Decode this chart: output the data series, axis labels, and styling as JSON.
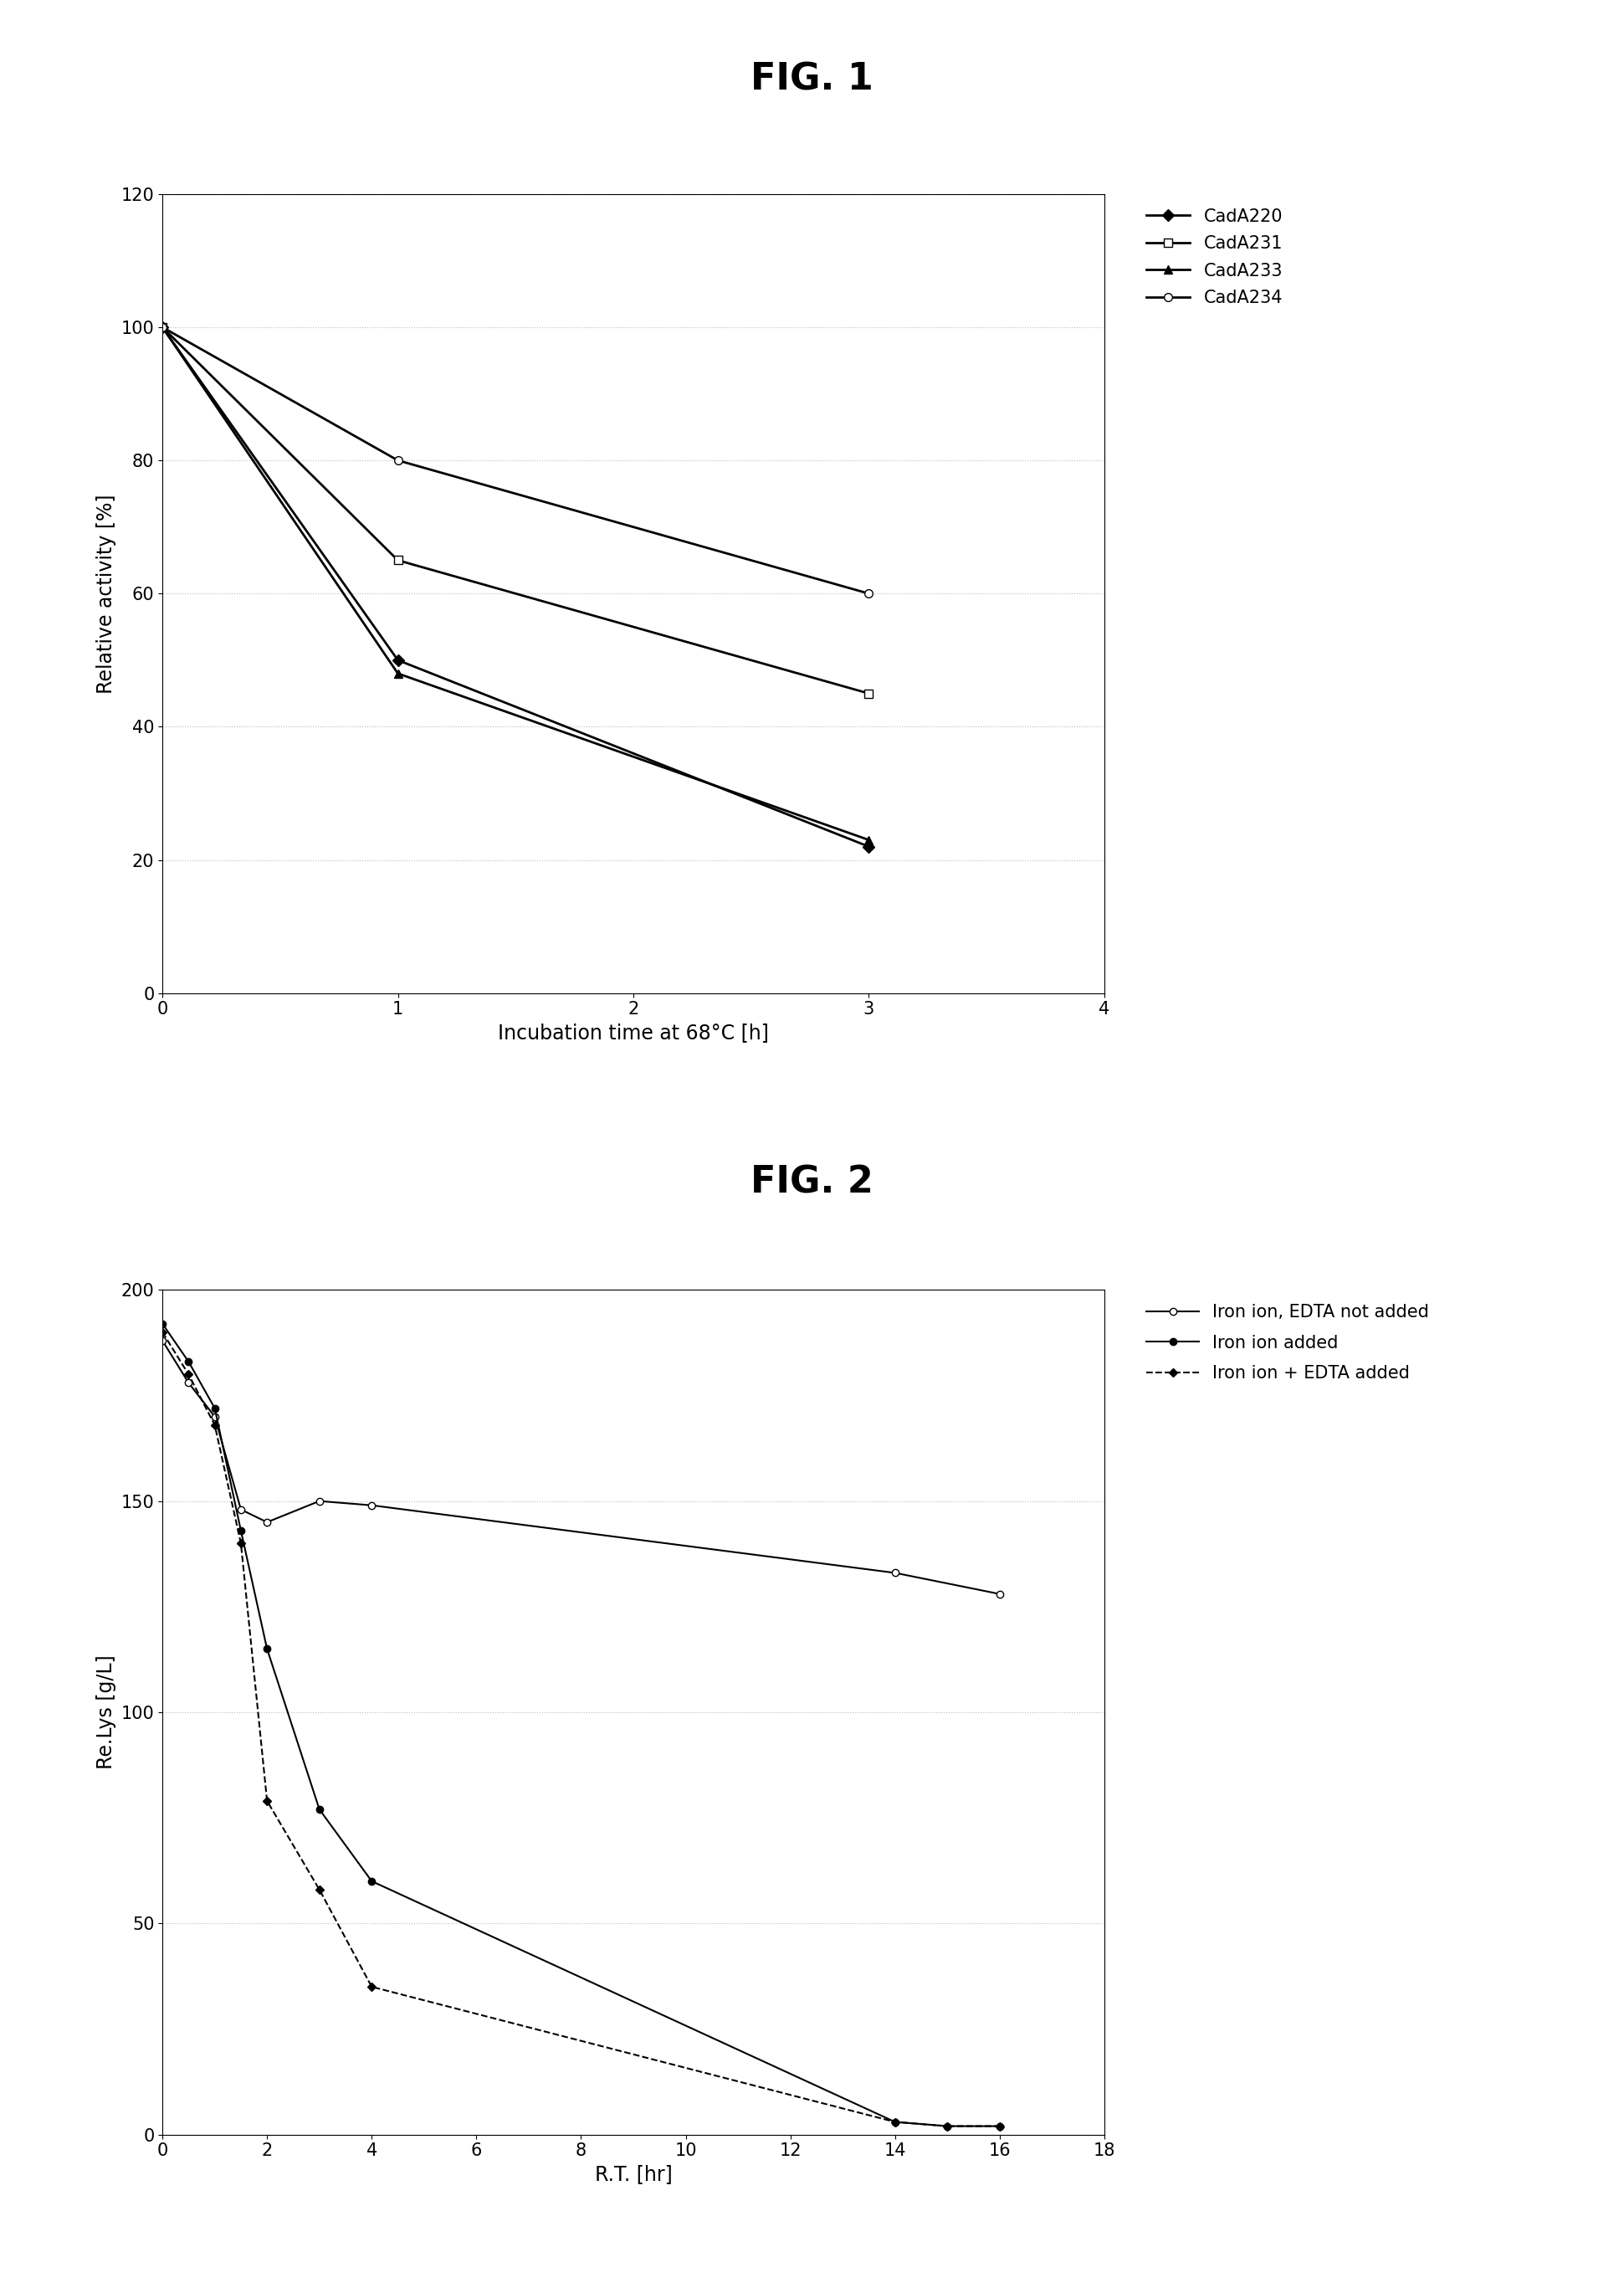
{
  "fig1": {
    "title": "FIG. 1",
    "xlabel": "Incubation time at 68°C [h]",
    "ylabel": "Relative activity [%]",
    "xlim": [
      0,
      4
    ],
    "ylim": [
      0,
      120
    ],
    "xticks": [
      0,
      1,
      2,
      3,
      4
    ],
    "yticks": [
      0,
      20,
      40,
      60,
      80,
      100,
      120
    ],
    "series": [
      {
        "label": "CadA220",
        "x": [
          0,
          1,
          3
        ],
        "y": [
          100,
          50,
          22
        ],
        "color": "#000000",
        "marker": "D",
        "markersize": 7,
        "linestyle": "-",
        "linewidth": 2,
        "markerfacecolor": "#000000"
      },
      {
        "label": "CadA231",
        "x": [
          0,
          1,
          3
        ],
        "y": [
          100,
          65,
          45
        ],
        "color": "#000000",
        "marker": "s",
        "markersize": 7,
        "linestyle": "-",
        "linewidth": 2,
        "markerfacecolor": "#ffffff"
      },
      {
        "label": "CadA233",
        "x": [
          0,
          1,
          3
        ],
        "y": [
          100,
          48,
          23
        ],
        "color": "#000000",
        "marker": "^",
        "markersize": 7,
        "linestyle": "-",
        "linewidth": 2,
        "markerfacecolor": "#000000"
      },
      {
        "label": "CadA234",
        "x": [
          0,
          1,
          3
        ],
        "y": [
          100,
          80,
          60
        ],
        "color": "#000000",
        "marker": "o",
        "markersize": 7,
        "linestyle": "-",
        "linewidth": 2,
        "markerfacecolor": "#ffffff"
      }
    ],
    "grid_color": "#bbbbbb"
  },
  "fig2": {
    "title": "FIG. 2",
    "xlabel": "R.T. [hr]",
    "ylabel": "Re.Lys [g/L]",
    "xlim": [
      0,
      18
    ],
    "ylim": [
      0,
      200
    ],
    "xticks": [
      0,
      2,
      4,
      6,
      8,
      10,
      12,
      14,
      16,
      18
    ],
    "yticks": [
      0,
      50,
      100,
      150,
      200
    ],
    "series": [
      {
        "label": "Iron ion, EDTA not added",
        "x": [
          0,
          0.5,
          1,
          1.5,
          2,
          3,
          4,
          14,
          16
        ],
        "y": [
          188,
          178,
          170,
          148,
          145,
          150,
          149,
          133,
          128
        ],
        "color": "#000000",
        "marker": "o",
        "markersize": 6,
        "linestyle": "-",
        "linewidth": 1.5,
        "markerfacecolor": "#ffffff"
      },
      {
        "label": "Iron ion added",
        "x": [
          0,
          0.5,
          1,
          1.5,
          2,
          3,
          4,
          14,
          15,
          16
        ],
        "y": [
          192,
          183,
          172,
          143,
          115,
          77,
          60,
          3,
          2,
          2
        ],
        "color": "#000000",
        "marker": "o",
        "markersize": 6,
        "linestyle": "-",
        "linewidth": 1.5,
        "markerfacecolor": "#000000"
      },
      {
        "label": "Iron ion + EDTA added",
        "x": [
          0,
          0.5,
          1,
          1.5,
          2,
          3,
          4,
          14,
          15,
          16
        ],
        "y": [
          190,
          180,
          168,
          140,
          79,
          58,
          35,
          3,
          2,
          2
        ],
        "color": "#000000",
        "marker": "D",
        "markersize": 5,
        "linestyle": "--",
        "linewidth": 1.5,
        "markerfacecolor": "#000000"
      }
    ],
    "grid_color": "#bbbbbb"
  },
  "background_color": "#ffffff",
  "title_fontsize": 32,
  "axis_label_fontsize": 17,
  "tick_fontsize": 15,
  "legend_fontsize": 15
}
